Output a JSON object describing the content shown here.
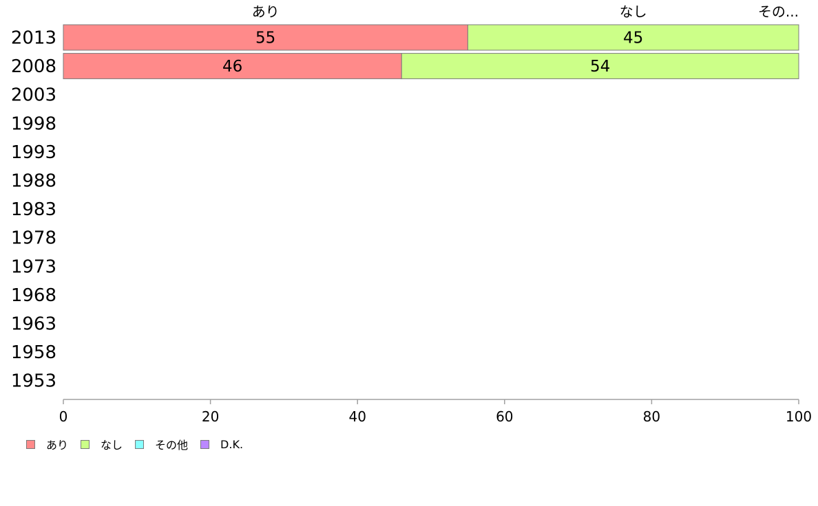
{
  "chart_data": {
    "type": "bar",
    "orientation": "horizontal",
    "stacked": true,
    "years": [
      "2013",
      "2008",
      "2003",
      "1998",
      "1993",
      "1988",
      "1983",
      "1978",
      "1973",
      "1968",
      "1963",
      "1958",
      "1953"
    ],
    "series": [
      {
        "name": "あり",
        "color": "#ff8a8a",
        "values": [
          55,
          46,
          null,
          null,
          null,
          null,
          null,
          null,
          null,
          null,
          null,
          null,
          null
        ]
      },
      {
        "name": "なし",
        "color": "#ccff88",
        "values": [
          45,
          54,
          null,
          null,
          null,
          null,
          null,
          null,
          null,
          null,
          null,
          null,
          null
        ]
      },
      {
        "name": "その他",
        "color": "#88ffff",
        "values": [
          0,
          0,
          null,
          null,
          null,
          null,
          null,
          null,
          null,
          null,
          null,
          null,
          null
        ]
      },
      {
        "name": "D.K.",
        "color": "#bb88ff",
        "values": [
          0,
          0,
          null,
          null,
          null,
          null,
          null,
          null,
          null,
          null,
          null,
          null,
          null
        ]
      }
    ],
    "top_labels": [
      "あり",
      "なし",
      "その..."
    ],
    "xlim": [
      0,
      100
    ],
    "xticks": [
      0,
      20,
      40,
      60,
      80,
      100
    ],
    "grid": false,
    "legend_position": "bottom-left"
  }
}
